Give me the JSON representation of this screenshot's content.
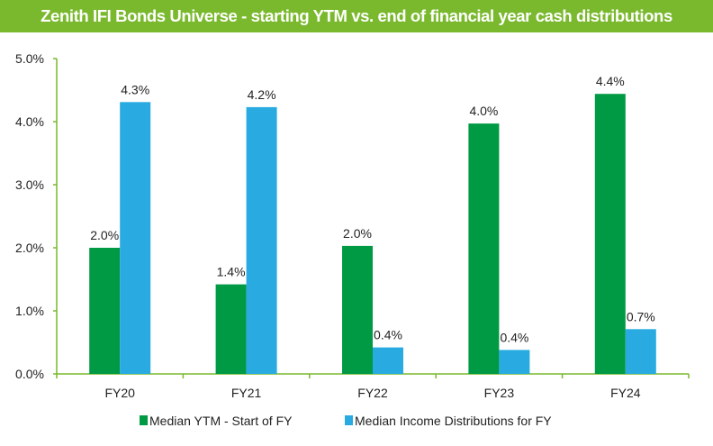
{
  "title": "Zenith IFI Bonds Universe - starting YTM vs. end of financial year cash distributions",
  "chart_data": {
    "type": "bar",
    "title": "Zenith IFI Bonds Universe - starting YTM vs. end of financial year cash distributions",
    "categories": [
      "FY20",
      "FY21",
      "FY22",
      "FY23",
      "FY24"
    ],
    "series": [
      {
        "name": "Median YTM - Start of FY",
        "color": "#009a44",
        "values": [
          2.0,
          1.42,
          2.03,
          3.97,
          4.44
        ],
        "labels": [
          "2.0%",
          "1.4%",
          "2.0%",
          "4.0%",
          "4.4%"
        ]
      },
      {
        "name": "Median Income Distributions for FY",
        "color": "#29abe2",
        "values": [
          4.31,
          4.23,
          0.42,
          0.38,
          0.71
        ],
        "labels": [
          "4.3%",
          "4.2%",
          "0.4%",
          "0.4%",
          "0.7%"
        ]
      }
    ],
    "yticks": [
      "0.0%",
      "1.0%",
      "2.0%",
      "3.0%",
      "4.0%",
      "5.0%"
    ],
    "ylim": [
      0,
      5
    ],
    "grid": false,
    "legend": "bottom",
    "axis_color": "#7ab92d",
    "title_bg": "#7ab92d"
  }
}
